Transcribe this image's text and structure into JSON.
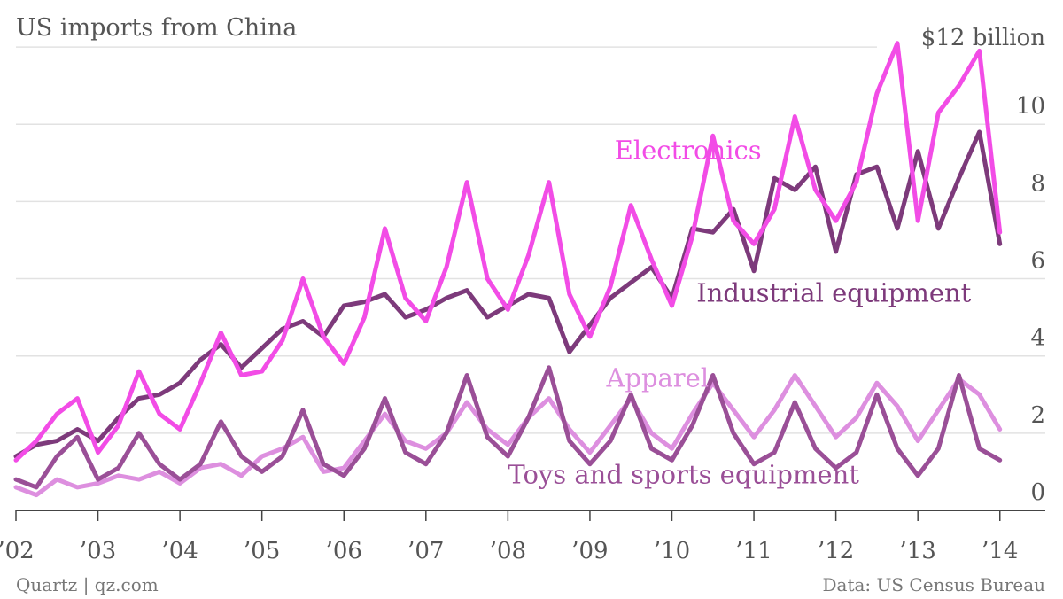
{
  "chart_data": {
    "type": "line",
    "title": "US imports from China",
    "xlabel": "",
    "ylabel": "",
    "y_top_label": "$12 billion",
    "ylim": [
      0,
      12.3
    ],
    "yticks": [
      0,
      2,
      4,
      6,
      8,
      10
    ],
    "xlim": [
      2002.0,
      2014.1
    ],
    "x_tick_labels": [
      {
        "x": 2002,
        "label": "’02"
      },
      {
        "x": 2003,
        "label": "’03"
      },
      {
        "x": 2004,
        "label": "’04"
      },
      {
        "x": 2005,
        "label": "’05"
      },
      {
        "x": 2006,
        "label": "’06"
      },
      {
        "x": 2007,
        "label": "’07"
      },
      {
        "x": 2008,
        "label": "’08"
      },
      {
        "x": 2009,
        "label": "’09"
      },
      {
        "x": 2010,
        "label": "’10"
      },
      {
        "x": 2011,
        "label": "’11"
      },
      {
        "x": 2012,
        "label": "’12"
      },
      {
        "x": 2013,
        "label": "’13"
      },
      {
        "x": 2014,
        "label": "’14"
      }
    ],
    "grid": true,
    "series": [
      {
        "name": "Apparel",
        "color": "#dd8fdf",
        "x": [
          2002.0,
          2002.25,
          2002.5,
          2002.75,
          2003.0,
          2003.25,
          2003.5,
          2003.75,
          2004.0,
          2004.25,
          2004.5,
          2004.75,
          2005.0,
          2005.25,
          2005.5,
          2005.75,
          2006.0,
          2006.25,
          2006.5,
          2006.75,
          2007.0,
          2007.25,
          2007.5,
          2007.75,
          2008.0,
          2008.25,
          2008.5,
          2008.75,
          2009.0,
          2009.25,
          2009.5,
          2009.75,
          2010.0,
          2010.25,
          2010.5,
          2010.75,
          2011.0,
          2011.25,
          2011.5,
          2011.75,
          2012.0,
          2012.25,
          2012.5,
          2012.75,
          2013.0,
          2013.25,
          2013.5,
          2013.75,
          2014.0
        ],
        "y": [
          0.6,
          0.4,
          0.8,
          0.6,
          0.7,
          0.9,
          0.8,
          1.0,
          0.7,
          1.1,
          1.2,
          0.9,
          1.4,
          1.6,
          1.9,
          1.0,
          1.1,
          1.8,
          2.5,
          1.8,
          1.6,
          2.0,
          2.8,
          2.1,
          1.7,
          2.4,
          2.9,
          2.1,
          1.5,
          2.2,
          2.9,
          2.0,
          1.6,
          2.5,
          3.3,
          2.6,
          1.9,
          2.6,
          3.5,
          2.7,
          1.9,
          2.4,
          3.3,
          2.7,
          1.8,
          2.6,
          3.4,
          3.0,
          2.1
        ]
      },
      {
        "name": "Toys and sports equipment",
        "color": "#9a4f97",
        "x": [
          2002.0,
          2002.25,
          2002.5,
          2002.75,
          2003.0,
          2003.25,
          2003.5,
          2003.75,
          2004.0,
          2004.25,
          2004.5,
          2004.75,
          2005.0,
          2005.25,
          2005.5,
          2005.75,
          2006.0,
          2006.25,
          2006.5,
          2006.75,
          2007.0,
          2007.25,
          2007.5,
          2007.75,
          2008.0,
          2008.25,
          2008.5,
          2008.75,
          2009.0,
          2009.25,
          2009.5,
          2009.75,
          2010.0,
          2010.25,
          2010.5,
          2010.75,
          2011.0,
          2011.25,
          2011.5,
          2011.75,
          2012.0,
          2012.25,
          2012.5,
          2012.75,
          2013.0,
          2013.25,
          2013.5,
          2013.75,
          2014.0
        ],
        "y": [
          0.8,
          0.6,
          1.4,
          1.9,
          0.8,
          1.1,
          2.0,
          1.2,
          0.8,
          1.2,
          2.3,
          1.4,
          1.0,
          1.4,
          2.6,
          1.2,
          0.9,
          1.6,
          2.9,
          1.5,
          1.2,
          2.0,
          3.5,
          1.9,
          1.4,
          2.4,
          3.7,
          1.8,
          1.2,
          1.8,
          3.0,
          1.6,
          1.3,
          2.2,
          3.5,
          2.0,
          1.2,
          1.5,
          2.8,
          1.6,
          1.1,
          1.5,
          3.0,
          1.6,
          0.9,
          1.6,
          3.5,
          1.6,
          1.3
        ]
      },
      {
        "name": "Industrial equipment",
        "color": "#7d3a7b",
        "x": [
          2002.0,
          2002.25,
          2002.5,
          2002.75,
          2003.0,
          2003.25,
          2003.5,
          2003.75,
          2004.0,
          2004.25,
          2004.5,
          2004.75,
          2005.0,
          2005.25,
          2005.5,
          2005.75,
          2006.0,
          2006.25,
          2006.5,
          2006.75,
          2007.0,
          2007.25,
          2007.5,
          2007.75,
          2008.0,
          2008.25,
          2008.5,
          2008.75,
          2009.0,
          2009.25,
          2009.5,
          2009.75,
          2010.0,
          2010.25,
          2010.5,
          2010.75,
          2011.0,
          2011.25,
          2011.5,
          2011.75,
          2012.0,
          2012.25,
          2012.5,
          2012.75,
          2013.0,
          2013.25,
          2013.5,
          2013.75,
          2014.0
        ],
        "y": [
          1.4,
          1.7,
          1.8,
          2.1,
          1.8,
          2.4,
          2.9,
          3.0,
          3.3,
          3.9,
          4.3,
          3.7,
          4.2,
          4.7,
          4.9,
          4.5,
          5.3,
          5.4,
          5.6,
          5.0,
          5.2,
          5.5,
          5.7,
          5.0,
          5.3,
          5.6,
          5.5,
          4.1,
          4.8,
          5.5,
          5.9,
          6.3,
          5.5,
          7.3,
          7.2,
          7.8,
          6.2,
          8.6,
          8.3,
          8.9,
          6.7,
          8.7,
          8.9,
          7.3,
          9.3,
          7.3,
          8.6,
          9.8,
          6.9
        ]
      },
      {
        "name": "Electronics",
        "color": "#f24ce6",
        "x": [
          2002.0,
          2002.25,
          2002.5,
          2002.75,
          2003.0,
          2003.25,
          2003.5,
          2003.75,
          2004.0,
          2004.25,
          2004.5,
          2004.75,
          2005.0,
          2005.25,
          2005.5,
          2005.75,
          2006.0,
          2006.25,
          2006.5,
          2006.75,
          2007.0,
          2007.25,
          2007.5,
          2007.75,
          2008.0,
          2008.25,
          2008.5,
          2008.75,
          2009.0,
          2009.25,
          2009.5,
          2009.75,
          2010.0,
          2010.25,
          2010.5,
          2010.75,
          2011.0,
          2011.25,
          2011.5,
          2011.75,
          2012.0,
          2012.25,
          2012.5,
          2012.75,
          2013.0,
          2013.25,
          2013.5,
          2013.75,
          2014.0
        ],
        "y": [
          1.3,
          1.8,
          2.5,
          2.9,
          1.5,
          2.2,
          3.6,
          2.5,
          2.1,
          3.3,
          4.6,
          3.5,
          3.6,
          4.4,
          6.0,
          4.5,
          3.8,
          5.0,
          7.3,
          5.5,
          4.9,
          6.3,
          8.5,
          6.0,
          5.2,
          6.6,
          8.5,
          5.6,
          4.5,
          5.8,
          7.9,
          6.5,
          5.3,
          7.1,
          9.7,
          7.5,
          6.9,
          7.8,
          10.2,
          8.3,
          7.5,
          8.5,
          10.8,
          12.1,
          7.5,
          10.3,
          11.0,
          11.9,
          7.2
        ]
      }
    ],
    "labels": [
      {
        "series": "Electronics",
        "text": "Electronics",
        "x": 2009.3,
        "y": 9.1
      },
      {
        "series": "Industrial equipment",
        "text": "Industrial equipment",
        "x": 2010.3,
        "y": 5.4
      },
      {
        "series": "Apparel",
        "text": "Apparel",
        "x": 2009.2,
        "y": 3.2
      },
      {
        "series": "Toys and sports equipment",
        "text": "Toys and sports equipment",
        "x": 2008.0,
        "y": 0.7
      }
    ]
  },
  "footer": {
    "source_left": "Quartz | qz.com",
    "source_right": "Data: US Census Bureau"
  }
}
